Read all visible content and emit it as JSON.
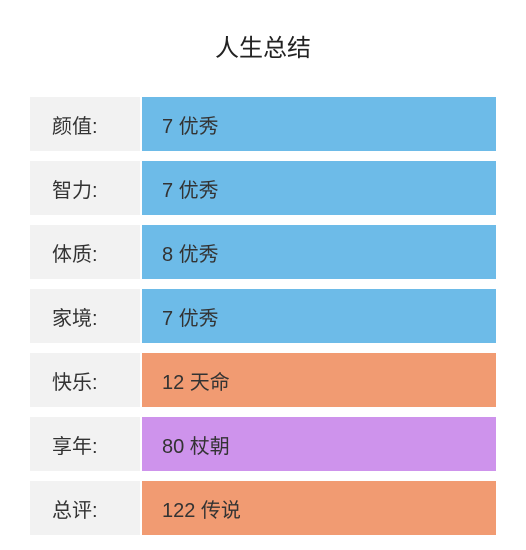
{
  "title": "人生总结",
  "label_bg": "#f2f2f2",
  "rows": [
    {
      "label": "颜值:",
      "value": "7 优秀",
      "value_bg": "#6dbbe8"
    },
    {
      "label": "智力:",
      "value": "7 优秀",
      "value_bg": "#6dbbe8"
    },
    {
      "label": "体质:",
      "value": "8 优秀",
      "value_bg": "#6dbbe8"
    },
    {
      "label": "家境:",
      "value": "7 优秀",
      "value_bg": "#6dbbe8"
    },
    {
      "label": "快乐:",
      "value": "12 天命",
      "value_bg": "#f19b72"
    },
    {
      "label": "享年:",
      "value": "80 杖朝",
      "value_bg": "#ce93ec"
    },
    {
      "label": "总评:",
      "value": "122 传说",
      "value_bg": "#f19b72"
    }
  ]
}
